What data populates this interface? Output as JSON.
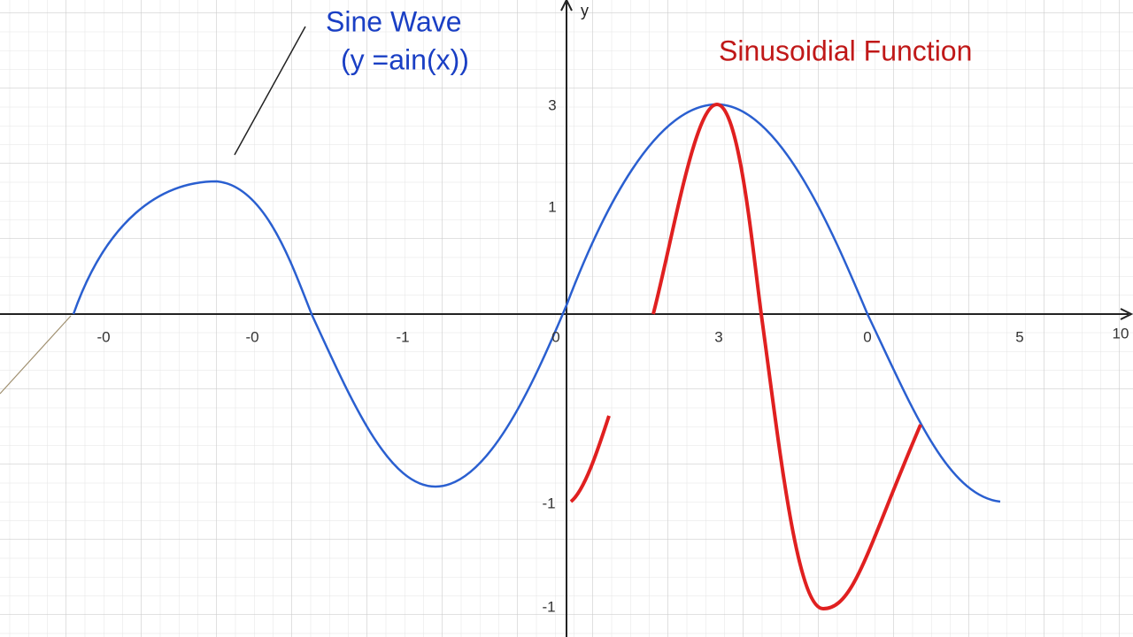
{
  "labels": {
    "sine_title": "Sine Wave",
    "sine_formula": "(y =ain(x))",
    "red_title": "Sinusoidial Function",
    "y_axis": "y"
  },
  "x_ticks": [
    "-0",
    "-0",
    "-1",
    "0",
    "3",
    "0",
    "5",
    "10"
  ],
  "y_ticks": [
    "3",
    "1",
    "-1",
    "-1"
  ]
}
